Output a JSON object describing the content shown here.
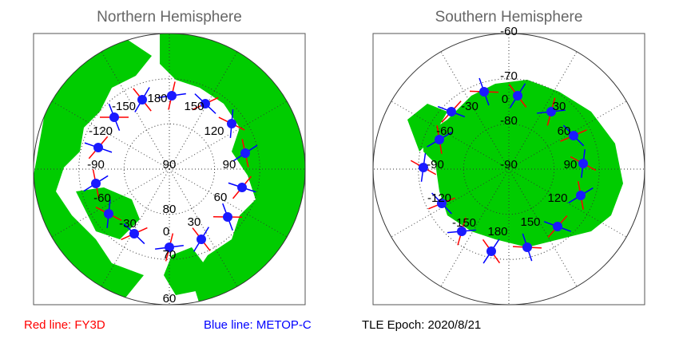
{
  "panels": [
    {
      "title": "Northern Hemisphere",
      "lon_labels": [
        "-150",
        "180",
        "150",
        "120",
        "90",
        "60",
        "30",
        "0",
        "-30",
        "-60",
        "-90",
        "-120"
      ],
      "lat_labels": [
        "90",
        "80",
        "70",
        "60"
      ]
    },
    {
      "title": "Southern Hemisphere",
      "lon_labels": [
        "0",
        "30",
        "60",
        "90",
        "120",
        "150",
        "180",
        "-150",
        "-120",
        "-90",
        "-60",
        "-30"
      ],
      "lat_labels": [
        "-60",
        "-70",
        "-80",
        "-90"
      ]
    }
  ],
  "legend": {
    "red": "Red line: FY3D",
    "blue": "Blue line: METOP-C",
    "epoch": "TLE Epoch: 2020/8/21"
  }
}
